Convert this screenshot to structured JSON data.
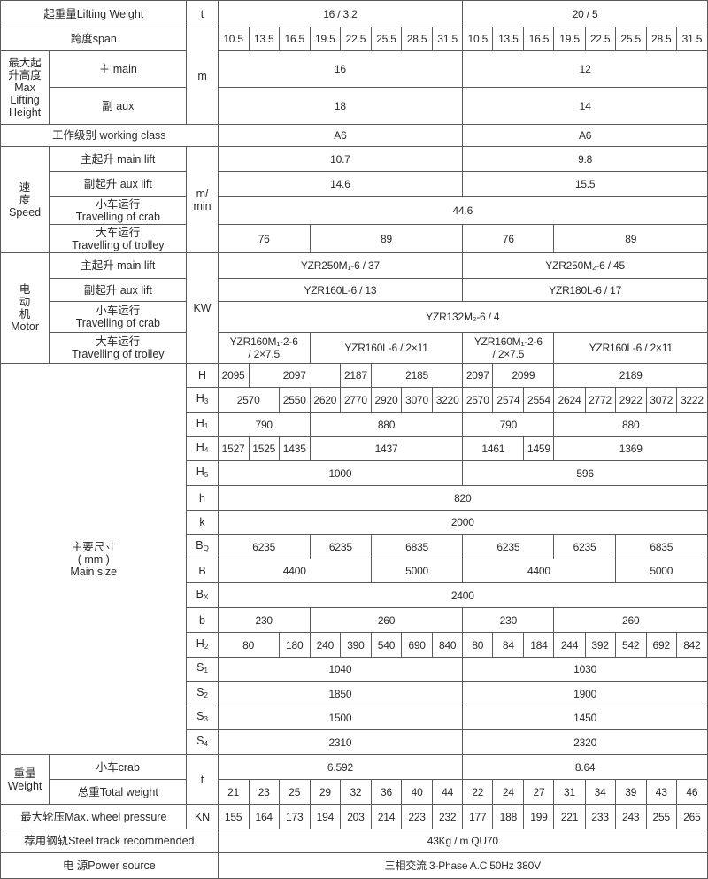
{
  "lifting_weight": {
    "label": "起重量Lifting Weight",
    "unit": "t",
    "values": [
      "16 / 3.2",
      "20 / 5"
    ]
  },
  "span": {
    "label": "跨度span",
    "values": [
      "10.5",
      "13.5",
      "16.5",
      "19.5",
      "22.5",
      "25.5",
      "28.5",
      "31.5",
      "10.5",
      "13.5",
      "16.5",
      "19.5",
      "22.5",
      "25.5",
      "28.5",
      "31.5"
    ]
  },
  "max_lifting_height": {
    "label": "最大起\n升高度\nMax\nLifting\nHeight",
    "unit": "m",
    "main": {
      "label": "主 main",
      "values": [
        "16",
        "12"
      ]
    },
    "aux": {
      "label": "副 aux",
      "values": [
        "18",
        "14"
      ]
    }
  },
  "working_class": {
    "label": "工作级别 working class",
    "values": [
      "A6",
      "A6"
    ]
  },
  "speed": {
    "label": "速\n度\nSpeed",
    "unit": "m/\nmin",
    "rows": [
      {
        "label": "主起升  main lift",
        "values": [
          "10.7",
          "9.8"
        ]
      },
      {
        "label": "副起升 aux lift",
        "values": [
          "14.6",
          "15.5"
        ]
      },
      {
        "label": "小车运行\nTravelling of crab",
        "values": [
          "44.6"
        ]
      },
      {
        "label": "大车运行\nTravelling of trolley",
        "values": [
          "76",
          "89",
          "76",
          "89"
        ]
      }
    ]
  },
  "motor": {
    "label": "电\n动\n机\nMotor",
    "unit": "KW",
    "rows": [
      {
        "label": "主起升  main lift",
        "values": [
          "YZR250M₁-6 / 37",
          "YZR250M₂-6 / 45"
        ]
      },
      {
        "label": "副起升 aux lift",
        "values": [
          "YZR160L-6 / 13",
          "YZR180L-6 / 17"
        ]
      },
      {
        "label": "小车运行\nTravelling of crab",
        "values": [
          "YZR132M₂-6 / 4"
        ]
      },
      {
        "label": "大车运行\nTravelling of trolley",
        "values": [
          "YZR160M₁-2-6\n/ 2×7.5",
          "YZR160L-6 / 2×11",
          "YZR160M₁-2-6\n/ 2×7.5",
          "YZR160L-6 / 2×11"
        ]
      }
    ]
  },
  "main_size": {
    "label": "主要尺寸\n( mm )\nMain size",
    "rows": [
      {
        "sym": "H",
        "sub": "",
        "values": [
          "2095",
          "2097",
          "2187",
          "2185",
          "2097",
          "2099",
          "2189"
        ]
      },
      {
        "sym": "H",
        "sub": "3",
        "values": [
          "2570",
          "2550",
          "2620",
          "2770",
          "2920",
          "3070",
          "3220",
          "2570",
          "2574",
          "2554",
          "2624",
          "2772",
          "2922",
          "3072",
          "3222"
        ]
      },
      {
        "sym": "H",
        "sub": "1",
        "values": [
          "790",
          "880",
          "790",
          "880"
        ]
      },
      {
        "sym": "H",
        "sub": "4",
        "values": [
          "1527",
          "1525",
          "1435",
          "1437",
          "1461",
          "1459",
          "1369"
        ]
      },
      {
        "sym": "H",
        "sub": "5",
        "values": [
          "1000",
          "596"
        ]
      },
      {
        "sym": "h",
        "sub": "",
        "values": [
          "820"
        ]
      },
      {
        "sym": "k",
        "sub": "",
        "values": [
          "2000"
        ]
      },
      {
        "sym": "B",
        "sub": "Q",
        "values": [
          "6235",
          "6235",
          "6835",
          "6235",
          "6235",
          "6835"
        ]
      },
      {
        "sym": "B",
        "sub": "",
        "values": [
          "4400",
          "5000",
          "4400",
          "5000"
        ]
      },
      {
        "sym": "B",
        "sub": "X",
        "values": [
          "2400"
        ]
      },
      {
        "sym": "b",
        "sub": "",
        "values": [
          "230",
          "260",
          "230",
          "260"
        ]
      },
      {
        "sym": "H",
        "sub": "2",
        "values": [
          "80",
          "180",
          "240",
          "390",
          "540",
          "690",
          "840",
          "80",
          "84",
          "184",
          "244",
          "392",
          "542",
          "692",
          "842"
        ]
      },
      {
        "sym": "S",
        "sub": "1",
        "values": [
          "1040",
          "1030"
        ]
      },
      {
        "sym": "S",
        "sub": "2",
        "values": [
          "1850",
          "1900"
        ]
      },
      {
        "sym": "S",
        "sub": "3",
        "values": [
          "1500",
          "1450"
        ]
      },
      {
        "sym": "S",
        "sub": "4",
        "values": [
          "2310",
          "2320"
        ]
      }
    ]
  },
  "weight": {
    "label": "重量\nWeight",
    "unit": "t",
    "crab": {
      "label": "小车crab",
      "values": [
        "6.592",
        "8.64"
      ]
    },
    "total": {
      "label": "总重Total weight",
      "values": [
        "21",
        "23",
        "25",
        "29",
        "32",
        "36",
        "40",
        "44",
        "22",
        "24",
        "27",
        "31",
        "34",
        "39",
        "43",
        "46"
      ]
    }
  },
  "wheel_pressure": {
    "label": "最大轮压Max.  wheel pressure",
    "unit": "KN",
    "values": [
      "155",
      "164",
      "173",
      "194",
      "203",
      "214",
      "223",
      "232",
      "177",
      "188",
      "199",
      "221",
      "233",
      "243",
      "255",
      "265"
    ]
  },
  "steel_track": {
    "label": "荐用钢轨Steel track recommended",
    "value": "43Kg / m QU70"
  },
  "power_source": {
    "label": "电  源Power source",
    "value": "三相交流  3-Phase  A.C  50Hz 380V"
  }
}
